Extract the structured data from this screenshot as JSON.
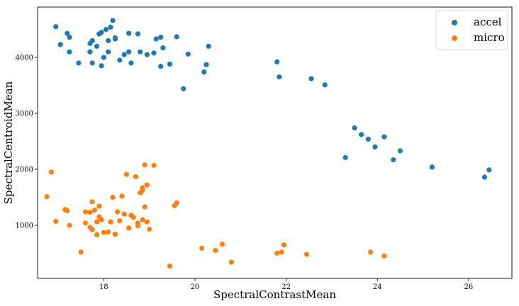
{
  "chart_data": {
    "type": "scatter",
    "title": "",
    "xlabel": "SpectralContrastMean",
    "ylabel": "SpectralCentroidMean",
    "xlim": [
      16.55,
      26.95
    ],
    "ylim": [
      50,
      4900
    ],
    "xticks": [
      18,
      20,
      22,
      24,
      26
    ],
    "yticks": [
      1000,
      2000,
      3000,
      4000
    ],
    "grid": false,
    "legend_position": "top-right",
    "series": [
      {
        "name": "accel",
        "color": "#1f77b4",
        "points": [
          [
            16.95,
            4550
          ],
          [
            17.05,
            4230
          ],
          [
            17.2,
            4430
          ],
          [
            17.25,
            4360
          ],
          [
            17.25,
            4100
          ],
          [
            17.45,
            3900
          ],
          [
            17.7,
            4250
          ],
          [
            17.75,
            4300
          ],
          [
            17.7,
            4100
          ],
          [
            17.75,
            3900
          ],
          [
            17.85,
            4200
          ],
          [
            17.9,
            4420
          ],
          [
            17.95,
            4450
          ],
          [
            18.05,
            4500
          ],
          [
            17.95,
            3850
          ],
          [
            18.0,
            4000
          ],
          [
            18.1,
            4100
          ],
          [
            18.1,
            4300
          ],
          [
            18.15,
            4540
          ],
          [
            18.2,
            4660
          ],
          [
            18.25,
            4330
          ],
          [
            18.25,
            4350
          ],
          [
            18.35,
            3950
          ],
          [
            18.45,
            4050
          ],
          [
            18.55,
            4430
          ],
          [
            18.55,
            4100
          ],
          [
            18.6,
            3900
          ],
          [
            18.75,
            4420
          ],
          [
            18.8,
            4100
          ],
          [
            18.95,
            4050
          ],
          [
            19.1,
            4080
          ],
          [
            19.15,
            4330
          ],
          [
            19.25,
            4360
          ],
          [
            19.25,
            3840
          ],
          [
            19.3,
            4170
          ],
          [
            19.45,
            3880
          ],
          [
            19.6,
            4370
          ],
          [
            19.75,
            3440
          ],
          [
            19.85,
            4060
          ],
          [
            20.2,
            3740
          ],
          [
            20.25,
            3870
          ],
          [
            20.3,
            4200
          ],
          [
            21.8,
            3920
          ],
          [
            21.85,
            3650
          ],
          [
            22.55,
            3620
          ],
          [
            22.85,
            3510
          ],
          [
            23.3,
            2210
          ],
          [
            23.5,
            2740
          ],
          [
            23.65,
            2620
          ],
          [
            23.8,
            2540
          ],
          [
            23.95,
            2400
          ],
          [
            24.15,
            2580
          ],
          [
            24.35,
            2170
          ],
          [
            24.5,
            2330
          ],
          [
            25.2,
            2040
          ],
          [
            26.35,
            1860
          ],
          [
            26.45,
            1990
          ]
        ]
      },
      {
        "name": "micro",
        "color": "#ff7f0e",
        "points": [
          [
            16.75,
            1510
          ],
          [
            16.85,
            1950
          ],
          [
            16.95,
            1070
          ],
          [
            17.15,
            1280
          ],
          [
            17.2,
            1260
          ],
          [
            17.25,
            1000
          ],
          [
            17.5,
            520
          ],
          [
            17.6,
            1240
          ],
          [
            17.6,
            1040
          ],
          [
            17.7,
            1230
          ],
          [
            17.75,
            1420
          ],
          [
            17.7,
            960
          ],
          [
            17.75,
            920
          ],
          [
            17.8,
            1270
          ],
          [
            17.85,
            1060
          ],
          [
            17.85,
            830
          ],
          [
            17.9,
            1150
          ],
          [
            17.9,
            1340
          ],
          [
            17.95,
            1100
          ],
          [
            18.0,
            870
          ],
          [
            18.1,
            880
          ],
          [
            18.15,
            1060
          ],
          [
            18.2,
            1500
          ],
          [
            18.25,
            840
          ],
          [
            18.3,
            1240
          ],
          [
            18.35,
            1080
          ],
          [
            18.4,
            1520
          ],
          [
            18.45,
            1200
          ],
          [
            18.5,
            1910
          ],
          [
            18.55,
            950
          ],
          [
            18.6,
            1180
          ],
          [
            18.65,
            1140
          ],
          [
            18.7,
            1870
          ],
          [
            18.75,
            1040
          ],
          [
            18.75,
            990
          ],
          [
            18.8,
            1580
          ],
          [
            18.85,
            1630
          ],
          [
            18.85,
            1670
          ],
          [
            18.85,
            1100
          ],
          [
            18.9,
            1330
          ],
          [
            18.9,
            2080
          ],
          [
            18.95,
            1720
          ],
          [
            18.95,
            1060
          ],
          [
            19.0,
            930
          ],
          [
            19.1,
            2070
          ],
          [
            19.45,
            270
          ],
          [
            19.55,
            1350
          ],
          [
            19.6,
            1400
          ],
          [
            20.15,
            590
          ],
          [
            20.45,
            550
          ],
          [
            20.6,
            660
          ],
          [
            20.8,
            340
          ],
          [
            21.8,
            500
          ],
          [
            21.9,
            520
          ],
          [
            21.95,
            650
          ],
          [
            22.45,
            480
          ],
          [
            23.85,
            520
          ],
          [
            24.15,
            450
          ]
        ]
      }
    ]
  }
}
